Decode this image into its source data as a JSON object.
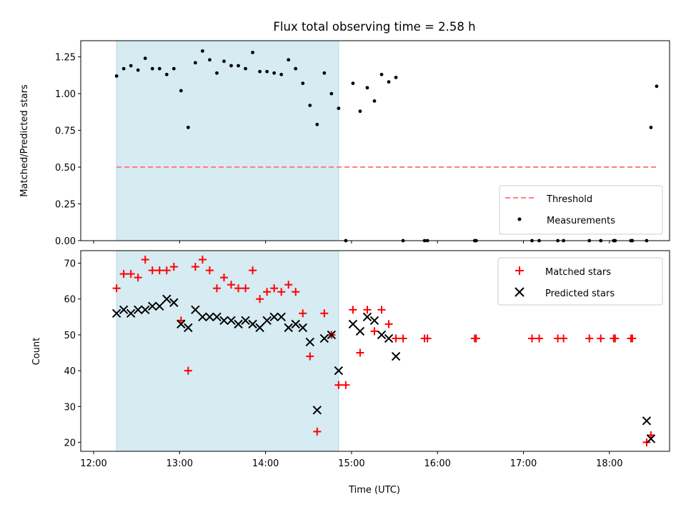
{
  "chart_data": [
    {
      "type": "scatter",
      "title": "Flux total observing time = 2.58 h",
      "xlabel": "",
      "ylabel": "Matched/Predicted stars",
      "ylim": [
        0,
        1.36
      ],
      "yticks": [
        "0.00",
        "0.25",
        "0.50",
        "0.75",
        "1.00",
        "1.25"
      ],
      "ytick_values": [
        0,
        0.25,
        0.5,
        0.75,
        1.0,
        1.25
      ],
      "shaded_span": {
        "start": "12:16",
        "end": "14:51",
        "color": "#add8e6"
      },
      "threshold": {
        "name": "Threshold",
        "value": 0.5,
        "x_start": "12:16",
        "x_end": "18:33",
        "color": "#ff7f7f"
      },
      "series": [
        {
          "name": "Measurements",
          "color": "#000000",
          "x": [
            "12:16",
            "12:21",
            "12:26",
            "12:31",
            "12:36",
            "12:41",
            "12:46",
            "12:51",
            "12:56",
            "13:01",
            "13:06",
            "13:11",
            "13:16",
            "13:21",
            "13:26",
            "13:31",
            "13:36",
            "13:41",
            "13:46",
            "13:51",
            "13:56",
            "14:01",
            "14:06",
            "14:11",
            "14:16",
            "14:21",
            "14:26",
            "14:31",
            "14:36",
            "14:41",
            "14:46",
            "14:51",
            "14:56",
            "15:01",
            "15:06",
            "15:11",
            "15:16",
            "15:21",
            "15:26",
            "15:31",
            "15:36",
            "15:51",
            "15:53",
            "16:26",
            "16:27",
            "17:06",
            "17:11",
            "17:24",
            "17:28",
            "17:46",
            "17:54",
            "18:03",
            "18:04",
            "18:15",
            "18:16",
            "18:26",
            "18:29",
            "18:33"
          ],
          "y": [
            1.12,
            1.17,
            1.19,
            1.16,
            1.24,
            1.17,
            1.17,
            1.13,
            1.17,
            1.02,
            0.77,
            1.21,
            1.29,
            1.23,
            1.14,
            1.22,
            1.19,
            1.19,
            1.17,
            1.28,
            1.15,
            1.15,
            1.14,
            1.13,
            1.23,
            1.17,
            1.07,
            0.92,
            0.79,
            1.14,
            1.0,
            0.9,
            0.0,
            1.07,
            0.88,
            1.04,
            0.95,
            1.13,
            1.08,
            1.11,
            0.0,
            0.0,
            0.0,
            0.0,
            0.0,
            0.0,
            0.0,
            0.0,
            0.0,
            0.0,
            0.0,
            0.0,
            0.0,
            0.0,
            0.0,
            0.0,
            0.77,
            1.05
          ]
        }
      ],
      "legend": {
        "placement": "lower right",
        "entries": [
          "Threshold",
          "Measurements"
        ]
      }
    },
    {
      "type": "scatter",
      "title": "",
      "xlabel": "Time (UTC)",
      "ylabel": "Count",
      "ylim": [
        17.5,
        73.5
      ],
      "yticks": [
        "20",
        "30",
        "40",
        "50",
        "60",
        "70"
      ],
      "ytick_values": [
        20,
        30,
        40,
        50,
        60,
        70
      ],
      "xlim": [
        "12:00",
        "18:30"
      ],
      "xticks": [
        "12:00",
        "13:00",
        "14:00",
        "15:00",
        "16:00",
        "17:00",
        "18:00"
      ],
      "shaded_span": {
        "start": "12:16",
        "end": "14:51",
        "color": "#add8e6"
      },
      "series": [
        {
          "name": "Matched stars",
          "marker": "+",
          "color": "#ff0000",
          "x": [
            "12:16",
            "12:21",
            "12:26",
            "12:31",
            "12:36",
            "12:41",
            "12:46",
            "12:51",
            "12:56",
            "13:01",
            "13:06",
            "13:11",
            "13:16",
            "13:21",
            "13:26",
            "13:31",
            "13:36",
            "13:41",
            "13:46",
            "13:51",
            "13:56",
            "14:01",
            "14:06",
            "14:11",
            "14:16",
            "14:21",
            "14:26",
            "14:31",
            "14:36",
            "14:41",
            "14:46",
            "14:51",
            "14:56",
            "15:01",
            "15:06",
            "15:11",
            "15:16",
            "15:21",
            "15:26",
            "15:31",
            "15:36",
            "15:51",
            "15:53",
            "16:26",
            "16:27",
            "17:06",
            "17:11",
            "17:24",
            "17:28",
            "17:46",
            "17:54",
            "18:03",
            "18:04",
            "18:15",
            "18:16",
            "18:26",
            "18:29"
          ],
          "y": [
            63,
            67,
            67,
            66,
            71,
            68,
            68,
            68,
            69,
            54,
            40,
            69,
            71,
            68,
            63,
            66,
            64,
            63,
            63,
            68,
            60,
            62,
            63,
            62,
            64,
            62,
            56,
            44,
            23,
            56,
            50,
            36,
            36,
            57,
            45,
            57,
            51,
            57,
            53,
            49,
            49,
            49,
            49,
            49,
            49,
            49,
            49,
            49,
            49,
            49,
            49,
            49,
            49,
            49,
            49,
            20,
            22
          ]
        },
        {
          "name": "Predicted stars",
          "marker": "x",
          "color": "#000000",
          "x": [
            "12:16",
            "12:21",
            "12:26",
            "12:31",
            "12:36",
            "12:41",
            "12:46",
            "12:51",
            "12:56",
            "13:01",
            "13:06",
            "13:11",
            "13:16",
            "13:21",
            "13:26",
            "13:31",
            "13:36",
            "13:41",
            "13:46",
            "13:51",
            "13:56",
            "14:01",
            "14:06",
            "14:11",
            "14:16",
            "14:21",
            "14:26",
            "14:31",
            "14:36",
            "14:41",
            "14:46",
            "14:51",
            "15:01",
            "15:06",
            "15:11",
            "15:16",
            "15:21",
            "15:26",
            "15:31",
            "18:26",
            "18:29"
          ],
          "y": [
            56,
            57,
            56,
            57,
            57,
            58,
            58,
            60,
            59,
            53,
            52,
            57,
            55,
            55,
            55,
            54,
            54,
            53,
            54,
            53,
            52,
            54,
            55,
            55,
            52,
            53,
            52,
            48,
            29,
            49,
            50,
            40,
            53,
            51,
            55,
            54,
            50,
            49,
            44,
            26,
            21
          ]
        }
      ],
      "legend": {
        "placement": "upper right",
        "entries": [
          "Matched stars",
          "Predicted stars"
        ]
      }
    }
  ]
}
